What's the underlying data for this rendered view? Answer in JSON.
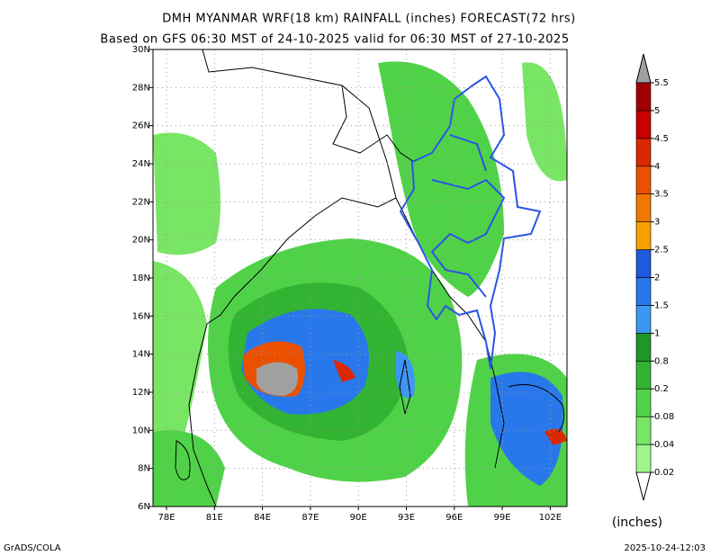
{
  "header": {
    "title": "DMH MYANMAR WRF(18 km) RAINFALL (inches) FORECAST(72 hrs)",
    "subtitle": "Based on GFS 06:30 MST of 24-10-2025 valid for 06:30 MST of 27-10-2025"
  },
  "map": {
    "lat_labels": [
      "6N",
      "8N",
      "10N",
      "12N",
      "14N",
      "16N",
      "18N",
      "20N",
      "22N",
      "24N",
      "26N",
      "28N",
      "30N"
    ],
    "lon_labels": [
      "78E",
      "81E",
      "84E",
      "87E",
      "90E",
      "93E",
      "96E",
      "99E",
      "102E"
    ]
  },
  "colorbar": {
    "labels": [
      "0.02",
      "0.04",
      "0.08",
      "0.2",
      "0.8",
      "1",
      "1.5",
      "2",
      "2.5",
      "3",
      "3.5",
      "4",
      "4.5",
      "5",
      "5.5"
    ],
    "colors": [
      "#a0f58c",
      "#78e664",
      "#50d248",
      "#32b432",
      "#1e9628",
      "#3c96f5",
      "#2878eb",
      "#1e5adc",
      "#f5a000",
      "#f07800",
      "#eb5000",
      "#dc2800",
      "#c80000",
      "#a00000"
    ],
    "unit": "(inches)"
  },
  "footer": {
    "left": "GrADS/COLA",
    "right": "2025-10-24-12:03"
  }
}
